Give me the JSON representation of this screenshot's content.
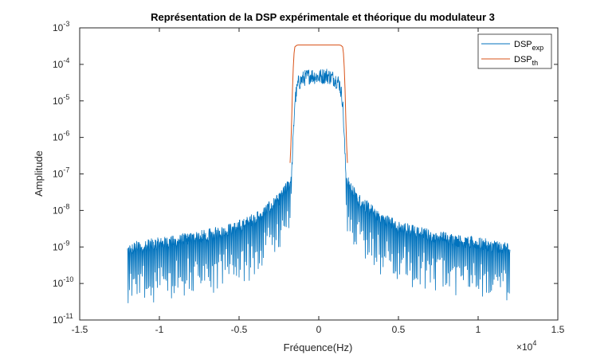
{
  "chart_data": {
    "type": "line",
    "title": "Représentation de la DSP expérimentale et théorique du modulateur 3",
    "xlabel": "Fréquence(Hz)",
    "ylabel": "Amplitude",
    "x_scale_factor": "×10^4",
    "x_ticks": [
      "-1.5",
      "-1",
      "-0.5",
      "0",
      "0.5",
      "1",
      "1.5"
    ],
    "y_ticks": [
      "10^-11",
      "10^-10",
      "10^-9",
      "10^-8",
      "10^-7",
      "10^-6",
      "10^-5",
      "10^-4",
      "10^-3"
    ],
    "xlim": [
      -15000,
      15000
    ],
    "ylim": [
      1e-11,
      0.001
    ],
    "y_scale": "log",
    "grid": false,
    "legend_position": "top-right",
    "series": [
      {
        "name": "DSP_exp",
        "legend_main": "DSP",
        "legend_sub": "exp",
        "color": "#0072BD",
        "x": [
          -12000,
          -11400,
          -10800,
          -10200,
          -9600,
          -9000,
          -8400,
          -7800,
          -7200,
          -6600,
          -6000,
          -5400,
          -4800,
          -4200,
          -3600,
          -3000,
          -2400,
          -1800,
          -1700,
          -1600,
          -1500,
          -1300,
          -1000,
          -500,
          0,
          500,
          1000,
          1300,
          1500,
          1600,
          1700,
          1800,
          2400,
          3000,
          3600,
          4200,
          4800,
          5400,
          6000,
          6600,
          7200,
          7800,
          8400,
          9000,
          9600,
          10200,
          10800,
          11400,
          12000
        ],
        "y": [
          8e-10,
          1e-09,
          1.1e-09,
          1.2e-09,
          1.3e-09,
          1.4e-09,
          1.6e-09,
          1.8e-09,
          2e-09,
          2.3e-09,
          2.7e-09,
          3.2e-09,
          4e-09,
          5.5e-09,
          8e-09,
          1.3e-08,
          2.2e-08,
          6e-08,
          1e-07,
          1e-06,
          1e-05,
          3e-05,
          4e-05,
          5e-05,
          4.5e-05,
          5e-05,
          4e-05,
          3e-05,
          1e-05,
          1e-06,
          1e-07,
          6e-08,
          2.2e-08,
          1.3e-08,
          8e-09,
          5.5e-09,
          4e-09,
          3.2e-09,
          2.7e-09,
          2.3e-09,
          2e-09,
          1.8e-09,
          1.6e-09,
          1.4e-09,
          1.3e-09,
          1.2e-09,
          1.1e-09,
          1e-09,
          8e-10
        ]
      },
      {
        "name": "DSP_th",
        "legend_main": "DSP",
        "legend_sub": "th",
        "color": "#D95319",
        "x": [
          -1800,
          -1750,
          -1700,
          -1650,
          -1600,
          -1550,
          -1500,
          -1400,
          -1300,
          -1000,
          0,
          1000,
          1300,
          1400,
          1500,
          1550,
          1600,
          1650,
          1700,
          1750,
          1800
        ],
        "y": [
          2e-07,
          6e-07,
          3e-06,
          2e-05,
          8e-05,
          0.0002,
          0.0003,
          0.00033,
          0.00034,
          0.00034,
          0.00034,
          0.00034,
          0.00034,
          0.00033,
          0.0003,
          0.0002,
          8e-05,
          2e-05,
          3e-06,
          6e-07,
          2e-07
        ]
      }
    ]
  }
}
